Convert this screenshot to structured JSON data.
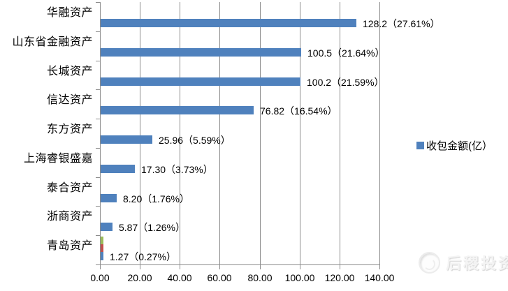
{
  "chart_data": {
    "type": "bar",
    "orientation": "horizontal",
    "title": "",
    "categories": [
      "华融资产",
      "山东省金融资产",
      "长城资产",
      "信达资产",
      "东方资产",
      "上海睿银盛嘉",
      "泰合资产",
      "浙商资产",
      "青岛资产"
    ],
    "values": [
      128.2,
      100.5,
      100.2,
      76.82,
      25.96,
      17.3,
      8.2,
      5.87,
      1.27
    ],
    "percentages": [
      27.61,
      21.64,
      21.59,
      16.54,
      5.59,
      3.73,
      1.76,
      1.26,
      0.27
    ],
    "data_labels": [
      "128.2（27.61%）",
      "100.5（21.64%）",
      "100.2（21.59%）",
      "76.82（16.54%）",
      "25.96（5.59%）",
      "17.30（3.73%）",
      "8.20（1.76%）",
      "5.87（1.26%）",
      "1.27（0.27%）"
    ],
    "x_ticks": [
      "0.00",
      "20.00",
      "40.00",
      "60.00",
      "80.00",
      "100.00",
      "120.00",
      "140.00"
    ],
    "x_tick_values": [
      0,
      20,
      40,
      60,
      80,
      100,
      120,
      140
    ],
    "xlim": [
      0,
      140
    ],
    "xlabel": "",
    "ylabel": "",
    "grid": true,
    "bar_color": "#4f81bd",
    "gridline_color": "#8c8c8c",
    "legend": {
      "label": "收包金额(亿）",
      "position": "right",
      "swatch_color": "#4f81bd"
    },
    "stray_marks": [
      {
        "color": "#9bbb59",
        "category": "青岛资产"
      },
      {
        "color": "#c0504d",
        "category": "青岛资产"
      }
    ]
  },
  "watermark": {
    "text": "后稷投资"
  }
}
